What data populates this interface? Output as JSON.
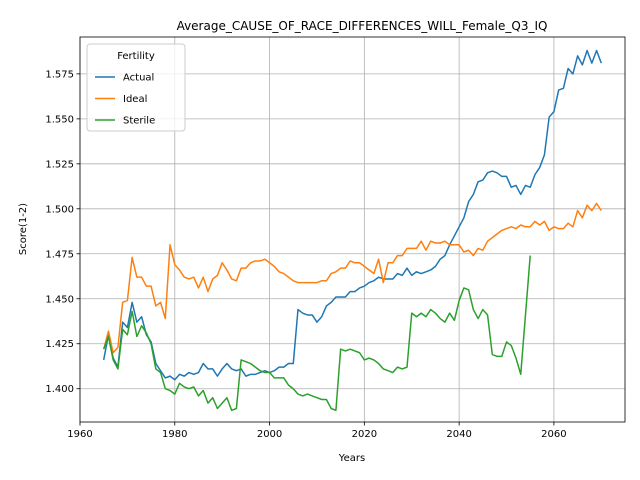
{
  "chart_data": {
    "type": "line",
    "title": "Average_CAUSE_OF_RACE_DIFFERENCES_WILL_Female_Q3_IQ",
    "xlabel": "Years",
    "ylabel": "Score(1-2)",
    "xlim": [
      1960,
      2075
    ],
    "ylim": [
      1.3815,
      1.5955
    ],
    "xticks": [
      1960,
      1980,
      2000,
      2020,
      2040,
      2060
    ],
    "yticks": [
      1.4,
      1.425,
      1.45,
      1.475,
      1.5,
      1.525,
      1.55,
      1.575
    ],
    "ytick_labels": [
      "1.400",
      "1.425",
      "1.450",
      "1.475",
      "1.500",
      "1.525",
      "1.550",
      "1.575"
    ],
    "grid": true,
    "legend": {
      "title": "Fertility",
      "placement": "top-left"
    },
    "series": [
      {
        "name": "Actual",
        "color": "#1f77b4",
        "x": [
          1965,
          1966,
          1967,
          1968,
          1969,
          1970,
          1971,
          1972,
          1973,
          1974,
          1975,
          1976,
          1977,
          1978,
          1979,
          1980,
          1981,
          1982,
          1983,
          1984,
          1985,
          1986,
          1987,
          1988,
          1989,
          1990,
          1991,
          1992,
          1993,
          1994,
          1995,
          1996,
          1997,
          1998,
          1999,
          2000,
          2001,
          2002,
          2003,
          2004,
          2005,
          2006,
          2007,
          2008,
          2009,
          2010,
          2011,
          2012,
          2013,
          2014,
          2015,
          2016,
          2017,
          2018,
          2019,
          2020,
          2021,
          2022,
          2023,
          2024,
          2025,
          2026,
          2027,
          2028,
          2029,
          2030,
          2031,
          2032,
          2033,
          2034,
          2035,
          2036,
          2037,
          2038,
          2039,
          2040,
          2041,
          2042,
          2043,
          2044,
          2045,
          2046,
          2047,
          2048,
          2049,
          2050,
          2051,
          2052,
          2053,
          2054,
          2055,
          2056,
          2057,
          2058,
          2059,
          2060,
          2061,
          2062,
          2063,
          2064,
          2065,
          2066,
          2067,
          2068,
          2069,
          2070
        ],
        "values": [
          1.416,
          1.43,
          1.417,
          1.412,
          1.437,
          1.434,
          1.448,
          1.437,
          1.44,
          1.43,
          1.426,
          1.414,
          1.41,
          1.406,
          1.407,
          1.405,
          1.408,
          1.407,
          1.409,
          1.408,
          1.409,
          1.414,
          1.411,
          1.411,
          1.407,
          1.411,
          1.414,
          1.411,
          1.41,
          1.411,
          1.407,
          1.408,
          1.408,
          1.409,
          1.41,
          1.409,
          1.41,
          1.412,
          1.412,
          1.414,
          1.414,
          1.444,
          1.442,
          1.441,
          1.441,
          1.437,
          1.44,
          1.446,
          1.448,
          1.451,
          1.451,
          1.451,
          1.454,
          1.454,
          1.456,
          1.457,
          1.459,
          1.46,
          1.462,
          1.461,
          1.461,
          1.461,
          1.464,
          1.463,
          1.467,
          1.463,
          1.465,
          1.464,
          1.465,
          1.466,
          1.468,
          1.472,
          1.474,
          1.48,
          1.485,
          1.49,
          1.495,
          1.504,
          1.508,
          1.515,
          1.516,
          1.52,
          1.521,
          1.52,
          1.518,
          1.518,
          1.512,
          1.513,
          1.508,
          1.513,
          1.512,
          1.519,
          1.523,
          1.53,
          1.551,
          1.554,
          1.566,
          1.567,
          1.578,
          1.575,
          1.585,
          1.58,
          1.588,
          1.581,
          1.588,
          1.581
        ]
      },
      {
        "name": "Ideal",
        "color": "#ff7f0e",
        "x": [
          1965,
          1966,
          1967,
          1968,
          1969,
          1970,
          1971,
          1972,
          1973,
          1974,
          1975,
          1976,
          1977,
          1978,
          1979,
          1980,
          1981,
          1982,
          1983,
          1984,
          1985,
          1986,
          1987,
          1988,
          1989,
          1990,
          1991,
          1992,
          1993,
          1994,
          1995,
          1996,
          1997,
          1998,
          1999,
          2000,
          2001,
          2002,
          2003,
          2004,
          2005,
          2006,
          2007,
          2008,
          2009,
          2010,
          2011,
          2012,
          2013,
          2014,
          2015,
          2016,
          2017,
          2018,
          2019,
          2020,
          2021,
          2022,
          2023,
          2024,
          2025,
          2026,
          2027,
          2028,
          2029,
          2030,
          2031,
          2032,
          2033,
          2034,
          2035,
          2036,
          2037,
          2038,
          2039,
          2040,
          2041,
          2042,
          2043,
          2044,
          2045,
          2046,
          2047,
          2048,
          2049,
          2050,
          2051,
          2052,
          2053,
          2054,
          2055,
          2056,
          2057,
          2058,
          2059,
          2060,
          2061,
          2062,
          2063,
          2064,
          2065,
          2066,
          2067,
          2068,
          2069,
          2070
        ],
        "values": [
          1.422,
          1.432,
          1.42,
          1.423,
          1.448,
          1.449,
          1.473,
          1.462,
          1.462,
          1.457,
          1.457,
          1.446,
          1.448,
          1.439,
          1.48,
          1.469,
          1.466,
          1.462,
          1.461,
          1.462,
          1.456,
          1.462,
          1.454,
          1.461,
          1.463,
          1.47,
          1.466,
          1.461,
          1.46,
          1.467,
          1.467,
          1.47,
          1.471,
          1.471,
          1.472,
          1.47,
          1.468,
          1.465,
          1.464,
          1.462,
          1.46,
          1.459,
          1.459,
          1.459,
          1.459,
          1.459,
          1.46,
          1.46,
          1.464,
          1.465,
          1.467,
          1.467,
          1.471,
          1.47,
          1.47,
          1.468,
          1.466,
          1.464,
          1.472,
          1.459,
          1.47,
          1.47,
          1.474,
          1.474,
          1.478,
          1.478,
          1.478,
          1.482,
          1.477,
          1.482,
          1.481,
          1.481,
          1.482,
          1.48,
          1.48,
          1.48,
          1.476,
          1.477,
          1.474,
          1.478,
          1.477,
          1.482,
          1.484,
          1.486,
          1.488,
          1.489,
          1.49,
          1.489,
          1.491,
          1.49,
          1.49,
          1.493,
          1.491,
          1.493,
          1.488,
          1.49,
          1.489,
          1.489,
          1.492,
          1.49,
          1.499,
          1.495,
          1.502,
          1.499,
          1.503,
          1.499
        ]
      },
      {
        "name": "Sterile",
        "color": "#2ca02c",
        "x": [
          1965,
          1966,
          1967,
          1968,
          1969,
          1970,
          1971,
          1972,
          1973,
          1974,
          1975,
          1976,
          1977,
          1978,
          1979,
          1980,
          1981,
          1982,
          1983,
          1984,
          1985,
          1986,
          1987,
          1988,
          1989,
          1990,
          1991,
          1992,
          1993,
          1994,
          1995,
          1996,
          1997,
          1998,
          1999,
          2000,
          2001,
          2002,
          2003,
          2004,
          2005,
          2006,
          2007,
          2008,
          2009,
          2010,
          2011,
          2012,
          2013,
          2014,
          2015,
          2016,
          2017,
          2018,
          2019,
          2020,
          2021,
          2022,
          2023,
          2024,
          2025,
          2026,
          2027,
          2028,
          2029,
          2030,
          2031,
          2032,
          2033,
          2034,
          2035,
          2036,
          2037,
          2038,
          2039,
          2040,
          2041,
          2042,
          2043,
          2044,
          2045,
          2046,
          2047,
          2048,
          2049,
          2050,
          2051,
          2052,
          2053,
          2054,
          2055
        ],
        "values": [
          1.422,
          1.429,
          1.416,
          1.411,
          1.433,
          1.43,
          1.443,
          1.429,
          1.435,
          1.431,
          1.425,
          1.411,
          1.409,
          1.4,
          1.399,
          1.397,
          1.403,
          1.401,
          1.4,
          1.401,
          1.396,
          1.399,
          1.392,
          1.395,
          1.389,
          1.392,
          1.395,
          1.388,
          1.389,
          1.416,
          1.415,
          1.414,
          1.412,
          1.41,
          1.409,
          1.409,
          1.406,
          1.406,
          1.406,
          1.402,
          1.4,
          1.397,
          1.396,
          1.397,
          1.396,
          1.395,
          1.394,
          1.394,
          1.389,
          1.388,
          1.422,
          1.421,
          1.422,
          1.421,
          1.42,
          1.416,
          1.417,
          1.416,
          1.414,
          1.411,
          1.41,
          1.409,
          1.412,
          1.411,
          1.412,
          1.442,
          1.44,
          1.442,
          1.44,
          1.444,
          1.442,
          1.439,
          1.437,
          1.442,
          1.438,
          1.449,
          1.456,
          1.455,
          1.444,
          1.439,
          1.444,
          1.441,
          1.419,
          1.418,
          1.418,
          1.426,
          1.424,
          1.417,
          1.408,
          1.441,
          1.474
        ]
      }
    ]
  }
}
